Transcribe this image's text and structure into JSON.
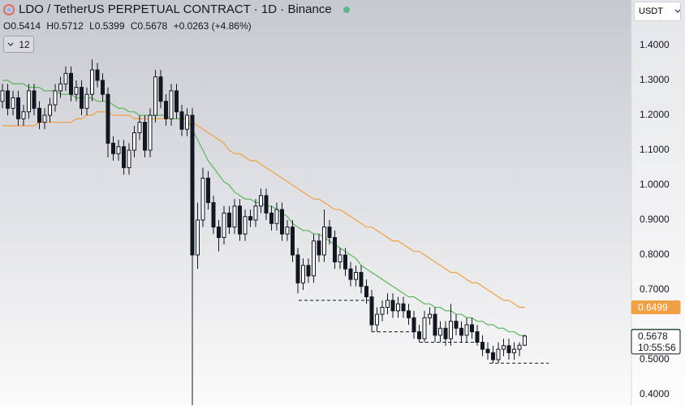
{
  "header": {
    "title": "LDO / TetherUS PERPETUAL CONTRACT · 1D · Binance",
    "ohlc": [
      {
        "label": "O",
        "value": "0.5414"
      },
      {
        "label": "H",
        "value": "0.5712"
      },
      {
        "label": "L",
        "value": "0.5399"
      },
      {
        "label": "C",
        "value": "0.5678"
      }
    ],
    "change": "+0.0263 (+4.86%)",
    "indicators": "12",
    "currency": "USDT",
    "countdown": "10:55:56"
  },
  "chart_data": {
    "type": "candlestick",
    "ylim": [
      0.3674,
      1.5302
    ],
    "yticks": [
      {
        "value": 0.4,
        "label": "0.4000"
      },
      {
        "value": 0.5,
        "label": "0.5000"
      },
      {
        "value": 0.7,
        "label": "0.7000"
      },
      {
        "value": 0.8,
        "label": "0.8000"
      },
      {
        "value": 0.9,
        "label": "0.9000"
      },
      {
        "value": 1.0,
        "label": "1.0000"
      },
      {
        "value": 1.1,
        "label": "1.1000"
      },
      {
        "value": 1.2,
        "label": "1.2000"
      },
      {
        "value": 1.3,
        "label": "1.3000"
      },
      {
        "value": 1.4,
        "label": "1.4000"
      }
    ],
    "grid": false,
    "up_color": "#ffffff",
    "down_color": "#131722",
    "series": [
      {
        "open": [
          1.24,
          1.27,
          1.22,
          1.25,
          1.19,
          1.21,
          1.27,
          1.22,
          1.18,
          1.2,
          1.23,
          1.27,
          1.29,
          1.32,
          1.26,
          1.28,
          1.22,
          1.26,
          1.33,
          1.3,
          1.26,
          1.12,
          1.09,
          1.11,
          1.05,
          1.1,
          1.15,
          1.18,
          1.1,
          1.2,
          1.31,
          1.24,
          1.19,
          1.27,
          1.21,
          1.16,
          1.2,
          0.8,
          0.9,
          1.02,
          0.95,
          0.88,
          0.85,
          0.92,
          0.88,
          0.94,
          0.86,
          0.91,
          0.9,
          0.94,
          0.97,
          0.92,
          0.89,
          0.93,
          0.86,
          0.88,
          0.8,
          0.72,
          0.77,
          0.74,
          0.84,
          0.8,
          0.88,
          0.85,
          0.78,
          0.8,
          0.76,
          0.73,
          0.75,
          0.71,
          0.68,
          0.6,
          0.63,
          0.65,
          0.67,
          0.64,
          0.66,
          0.64,
          0.62,
          0.58,
          0.56,
          0.62,
          0.63,
          0.57,
          0.59,
          0.56,
          0.61,
          0.59,
          0.57,
          0.6,
          0.58,
          0.55,
          0.53,
          0.52,
          0.5,
          0.53,
          0.54,
          0.52,
          0.53,
          0.5414
        ],
        "high": [
          1.29,
          1.29,
          1.27,
          1.27,
          1.23,
          1.29,
          1.29,
          1.24,
          1.22,
          1.25,
          1.29,
          1.31,
          1.34,
          1.34,
          1.3,
          1.3,
          1.28,
          1.36,
          1.35,
          1.32,
          1.28,
          1.14,
          1.13,
          1.13,
          1.12,
          1.17,
          1.2,
          1.2,
          1.22,
          1.33,
          1.33,
          1.26,
          1.29,
          1.29,
          1.23,
          1.22,
          1.22,
          0.95,
          1.05,
          1.04,
          0.97,
          0.9,
          0.94,
          0.94,
          0.96,
          0.96,
          0.93,
          0.93,
          0.96,
          0.99,
          0.99,
          0.94,
          0.95,
          0.95,
          0.9,
          0.9,
          0.82,
          0.79,
          0.79,
          0.86,
          0.86,
          0.93,
          0.9,
          0.87,
          0.82,
          0.82,
          0.78,
          0.77,
          0.77,
          0.73,
          0.7,
          0.65,
          0.67,
          0.69,
          0.69,
          0.68,
          0.68,
          0.66,
          0.64,
          0.6,
          0.64,
          0.65,
          0.65,
          0.61,
          0.61,
          0.66,
          0.63,
          0.61,
          0.62,
          0.62,
          0.6,
          0.57,
          0.55,
          0.54,
          0.55,
          0.56,
          0.56,
          0.55,
          0.55,
          0.5712
        ],
        "low": [
          1.22,
          1.2,
          1.2,
          1.17,
          1.17,
          1.19,
          1.2,
          1.16,
          1.16,
          1.18,
          1.21,
          1.25,
          1.27,
          1.24,
          1.24,
          1.2,
          1.2,
          1.24,
          1.28,
          1.24,
          1.08,
          1.07,
          1.07,
          1.03,
          1.03,
          1.08,
          1.13,
          1.08,
          1.08,
          1.18,
          1.22,
          1.17,
          1.17,
          1.19,
          1.14,
          1.14,
          0.37,
          0.76,
          0.88,
          0.93,
          0.86,
          0.81,
          0.83,
          0.86,
          0.86,
          0.84,
          0.84,
          0.88,
          0.88,
          0.92,
          0.9,
          0.87,
          0.87,
          0.84,
          0.84,
          0.78,
          0.69,
          0.7,
          0.72,
          0.72,
          0.78,
          0.78,
          0.83,
          0.76,
          0.76,
          0.74,
          0.71,
          0.71,
          0.69,
          0.66,
          0.58,
          0.58,
          0.61,
          0.63,
          0.62,
          0.62,
          0.62,
          0.6,
          0.56,
          0.55,
          0.55,
          0.6,
          0.55,
          0.55,
          0.54,
          0.54,
          0.57,
          0.55,
          0.55,
          0.56,
          0.54,
          0.51,
          0.5,
          0.49,
          0.49,
          0.51,
          0.5,
          0.5,
          0.51,
          0.5399
        ],
        "close": [
          1.27,
          1.22,
          1.25,
          1.19,
          1.21,
          1.27,
          1.22,
          1.18,
          1.2,
          1.23,
          1.27,
          1.29,
          1.32,
          1.26,
          1.28,
          1.22,
          1.26,
          1.33,
          1.3,
          1.26,
          1.12,
          1.09,
          1.11,
          1.05,
          1.1,
          1.15,
          1.18,
          1.1,
          1.2,
          1.31,
          1.24,
          1.19,
          1.27,
          1.21,
          1.16,
          1.2,
          0.8,
          0.9,
          1.02,
          0.95,
          0.88,
          0.85,
          0.92,
          0.88,
          0.94,
          0.86,
          0.91,
          0.9,
          0.94,
          0.97,
          0.92,
          0.89,
          0.93,
          0.86,
          0.88,
          0.8,
          0.72,
          0.77,
          0.74,
          0.84,
          0.8,
          0.88,
          0.85,
          0.78,
          0.8,
          0.76,
          0.73,
          0.75,
          0.71,
          0.68,
          0.6,
          0.63,
          0.65,
          0.67,
          0.64,
          0.66,
          0.64,
          0.62,
          0.58,
          0.56,
          0.62,
          0.63,
          0.57,
          0.59,
          0.56,
          0.61,
          0.59,
          0.57,
          0.6,
          0.58,
          0.55,
          0.53,
          0.52,
          0.5,
          0.53,
          0.54,
          0.52,
          0.53,
          0.5414,
          0.5678
        ]
      }
    ],
    "moving_averages": [
      {
        "color": "#f0a045",
        "values": [
          1.17,
          1.17,
          1.17,
          1.17,
          1.17,
          1.17,
          1.17,
          1.18,
          1.18,
          1.18,
          1.18,
          1.18,
          1.18,
          1.18,
          1.19,
          1.19,
          1.2,
          1.2,
          1.21,
          1.21,
          1.21,
          1.2,
          1.2,
          1.2,
          1.2,
          1.19,
          1.19,
          1.19,
          1.19,
          1.19,
          1.19,
          1.19,
          1.19,
          1.19,
          1.19,
          1.19,
          1.18,
          1.17,
          1.16,
          1.15,
          1.14,
          1.13,
          1.12,
          1.1,
          1.09,
          1.09,
          1.08,
          1.07,
          1.07,
          1.06,
          1.05,
          1.04,
          1.03,
          1.02,
          1.01,
          1.0,
          0.99,
          0.98,
          0.97,
          0.96,
          0.96,
          0.95,
          0.94,
          0.93,
          0.93,
          0.92,
          0.91,
          0.9,
          0.89,
          0.88,
          0.88,
          0.87,
          0.86,
          0.85,
          0.84,
          0.84,
          0.83,
          0.82,
          0.81,
          0.81,
          0.8,
          0.79,
          0.78,
          0.77,
          0.76,
          0.75,
          0.75,
          0.74,
          0.73,
          0.72,
          0.72,
          0.71,
          0.7,
          0.69,
          0.68,
          0.67,
          0.67,
          0.66,
          0.65,
          0.6499
        ]
      },
      {
        "color": "#5fb35f",
        "values": [
          1.3,
          1.3,
          1.29,
          1.29,
          1.29,
          1.28,
          1.28,
          1.28,
          1.27,
          1.27,
          1.27,
          1.26,
          1.26,
          1.26,
          1.25,
          1.25,
          1.25,
          1.25,
          1.24,
          1.24,
          1.24,
          1.23,
          1.22,
          1.22,
          1.21,
          1.21,
          1.2,
          1.2,
          1.2,
          1.2,
          1.2,
          1.2,
          1.19,
          1.19,
          1.19,
          1.19,
          1.16,
          1.13,
          1.1,
          1.07,
          1.05,
          1.03,
          1.01,
          1.0,
          0.98,
          0.97,
          0.96,
          0.96,
          0.95,
          0.95,
          0.94,
          0.94,
          0.93,
          0.92,
          0.91,
          0.89,
          0.88,
          0.87,
          0.87,
          0.86,
          0.86,
          0.85,
          0.84,
          0.83,
          0.82,
          0.81,
          0.8,
          0.79,
          0.77,
          0.76,
          0.75,
          0.74,
          0.73,
          0.72,
          0.71,
          0.7,
          0.69,
          0.68,
          0.68,
          0.67,
          0.66,
          0.66,
          0.65,
          0.65,
          0.64,
          0.64,
          0.63,
          0.63,
          0.62,
          0.62,
          0.61,
          0.61,
          0.6,
          0.6,
          0.59,
          0.59,
          0.58,
          0.58,
          0.57,
          0.5689
        ]
      }
    ],
    "support_levels": [
      0.67,
      0.58,
      0.55,
      0.49
    ]
  }
}
